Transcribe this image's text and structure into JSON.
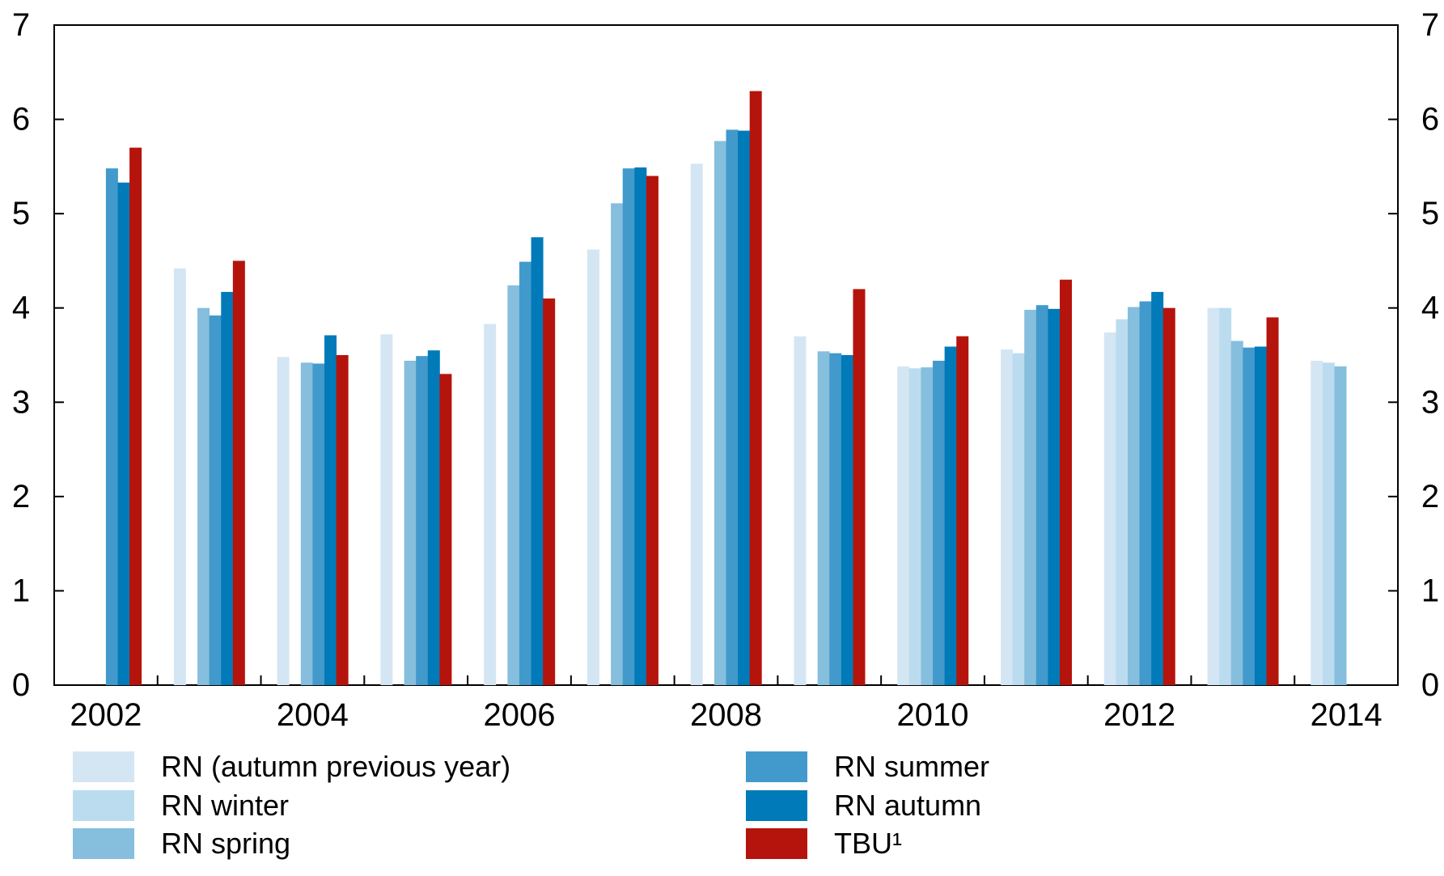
{
  "chart_data": {
    "type": "bar",
    "categories": [
      "2002",
      "2003",
      "2004",
      "2005",
      "2006",
      "2007",
      "2008",
      "2009",
      "2010",
      "2011",
      "2012",
      "2013",
      "2014"
    ],
    "x_tick_labels": [
      "2002",
      "2004",
      "2006",
      "2008",
      "2010",
      "2012",
      "2014"
    ],
    "y_tick_labels": [
      "0",
      "1",
      "2",
      "3",
      "4",
      "5",
      "6",
      "7"
    ],
    "ylim": [
      0,
      7
    ],
    "grid": false,
    "legend_position": "bottom",
    "series": [
      {
        "name": "RN (autumn previous year)",
        "color": "#d4e6f4",
        "values": [
          null,
          4.42,
          3.48,
          3.72,
          3.83,
          4.62,
          5.53,
          3.7,
          3.38,
          3.56,
          3.74,
          4.0,
          3.44
        ]
      },
      {
        "name": "RN winter",
        "color": "#bbdcef",
        "values": [
          null,
          null,
          null,
          null,
          null,
          null,
          null,
          null,
          3.36,
          3.52,
          3.88,
          4.0,
          3.42
        ]
      },
      {
        "name": "RN spring",
        "color": "#86bedd",
        "values": [
          null,
          4.0,
          3.42,
          3.44,
          4.24,
          5.11,
          5.77,
          3.54,
          3.37,
          3.98,
          4.01,
          3.65,
          3.38
        ]
      },
      {
        "name": "RN summer",
        "color": "#419acb",
        "values": [
          5.48,
          3.92,
          3.41,
          3.49,
          4.49,
          5.48,
          5.89,
          3.52,
          3.44,
          4.03,
          4.07,
          3.58,
          null
        ]
      },
      {
        "name": "RN autumn",
        "color": "#007ab9",
        "values": [
          5.33,
          4.17,
          3.71,
          3.55,
          4.75,
          5.49,
          5.88,
          3.5,
          3.59,
          3.99,
          4.17,
          3.59,
          null
        ]
      },
      {
        "name": "TBU¹",
        "color": "#b5140c",
        "values": [
          5.7,
          4.5,
          3.5,
          3.3,
          4.1,
          5.4,
          6.3,
          4.2,
          3.7,
          4.3,
          4.0,
          3.9,
          null
        ]
      }
    ]
  }
}
